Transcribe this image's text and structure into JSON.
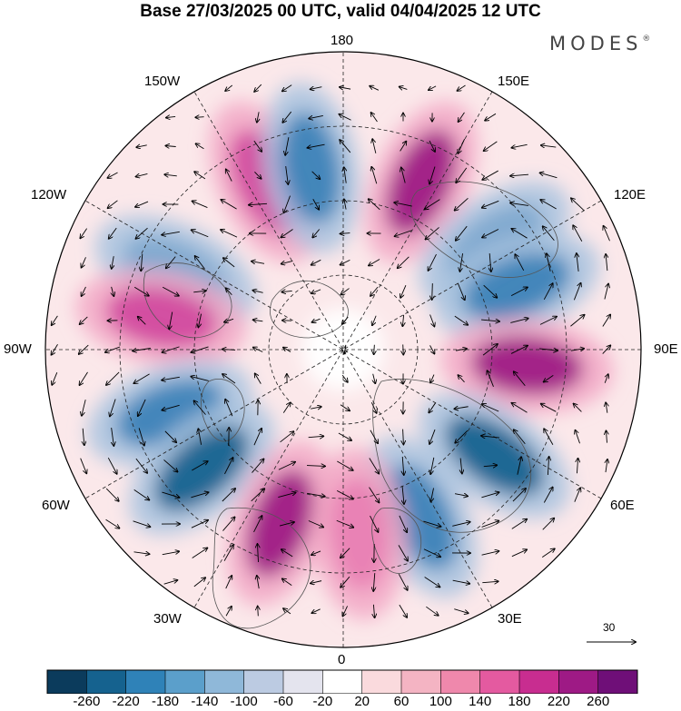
{
  "title": "Base 27/03/2025 00 UTC, valid 04/04/2025 12 UTC",
  "brand": "MODES",
  "brand_mark": "®",
  "longitude_labels": {
    "lon_180": "180",
    "lon_150W": "150W",
    "lon_150E": "150E",
    "lon_120W": "120W",
    "lon_120E": "120E",
    "lon_90W": "90W",
    "lon_90E": "90E",
    "lon_60W": "60W",
    "lon_60E": "60E",
    "lon_30W": "30W",
    "lon_30E": "30E",
    "lon_0": "0"
  },
  "vector_reference": "30",
  "projection": "north polar stereographic",
  "anomaly_centers": [
    {
      "sign": "positive",
      "lon": "155W",
      "strength": "strong"
    },
    {
      "sign": "negative",
      "lon": "170W",
      "strength": "strong"
    },
    {
      "sign": "positive",
      "lon": "155E",
      "strength": "very strong"
    },
    {
      "sign": "negative",
      "lon": "125E",
      "strength": "moderate"
    },
    {
      "sign": "negative",
      "lon": "115W",
      "strength": "moderate"
    },
    {
      "sign": "negative",
      "lon": "110E",
      "strength": "strong"
    },
    {
      "sign": "positive",
      "lon": "100W",
      "strength": "strong"
    },
    {
      "sign": "positive",
      "lon": "85E",
      "strength": "very strong"
    },
    {
      "sign": "negative",
      "lon": "70W",
      "strength": "strong"
    },
    {
      "sign": "negative",
      "lon": "50W",
      "strength": "very strong"
    },
    {
      "sign": "positive",
      "lon": "20W",
      "strength": "very strong"
    },
    {
      "sign": "negative",
      "lon": "25E",
      "strength": "strong"
    },
    {
      "sign": "negative",
      "lon": "55E",
      "strength": "very strong"
    },
    {
      "sign": "positive",
      "lon": "5E",
      "strength": "moderate"
    }
  ],
  "colorbar": {
    "colors": [
      "#0b3b5c",
      "#15628f",
      "#2f82b8",
      "#5b9fcb",
      "#8fb8d9",
      "#bccbe2",
      "#e4e4ee",
      "#ffffff",
      "#fadadd",
      "#f4b4c3",
      "#ef88ac",
      "#e45aa0",
      "#c82d90",
      "#9e1a85",
      "#6f0f78"
    ],
    "labels": [
      "-260",
      "-220",
      "-180",
      "-140",
      "-100",
      "-60",
      "-20",
      "20",
      "60",
      "100",
      "140",
      "180",
      "220",
      "260"
    ]
  }
}
